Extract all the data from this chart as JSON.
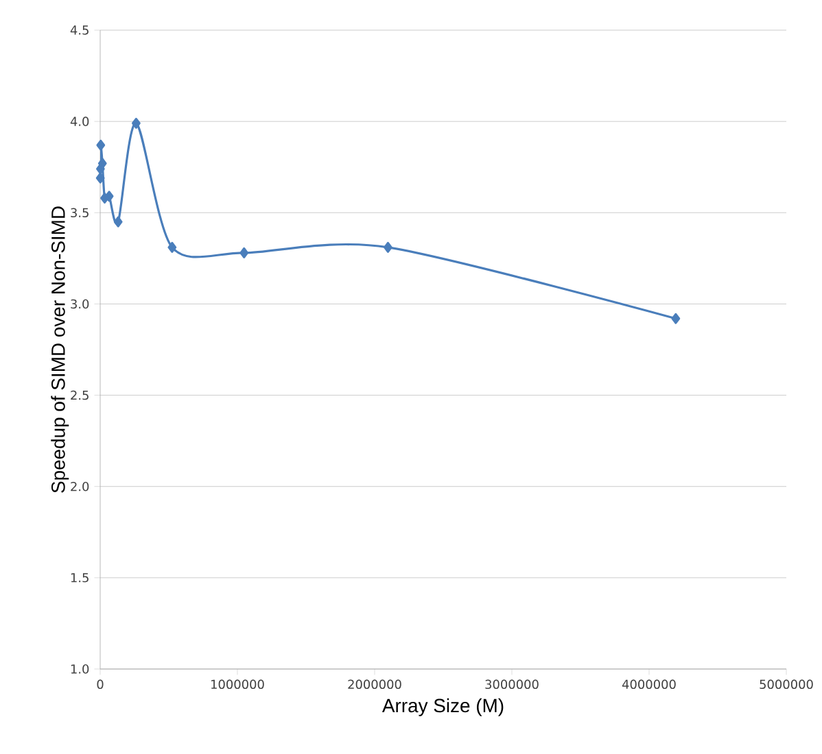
{
  "chart_data": {
    "type": "line",
    "xlabel": "Array Size (M)",
    "ylabel": "Speedup of SIMD over Non-SIMD",
    "x": [
      1024,
      2048,
      4096,
      8192,
      16384,
      32768,
      65536,
      131072,
      262144,
      524288,
      1048576,
      2097152,
      4194304
    ],
    "series": [
      {
        "color": "#4a7ebb",
        "values": [
          3.69,
          3.74,
          3.87,
          null,
          3.77,
          3.58,
          3.59,
          3.45,
          3.99,
          3.31,
          3.28,
          3.31,
          2.92
        ]
      }
    ],
    "xlim": [
      0,
      5000000
    ],
    "xticks": [
      0,
      1000000,
      2000000,
      3000000,
      4000000,
      5000000
    ],
    "ylim": [
      1.0,
      4.5
    ],
    "yticks": [
      {
        "value": 1.0,
        "label": "1.0"
      },
      {
        "value": 1.5,
        "label": "1.5"
      },
      {
        "value": 2.0,
        "label": "2.0"
      },
      {
        "value": 2.5,
        "label": "2.5"
      },
      {
        "value": 3.0,
        "label": "3.0"
      },
      {
        "value": 3.5,
        "label": "3.5"
      },
      {
        "value": 4.0,
        "label": "4.0"
      },
      {
        "value": 4.5,
        "label": "4.5"
      }
    ],
    "grid": "y",
    "marker": "diamond",
    "line_style": "solid"
  }
}
